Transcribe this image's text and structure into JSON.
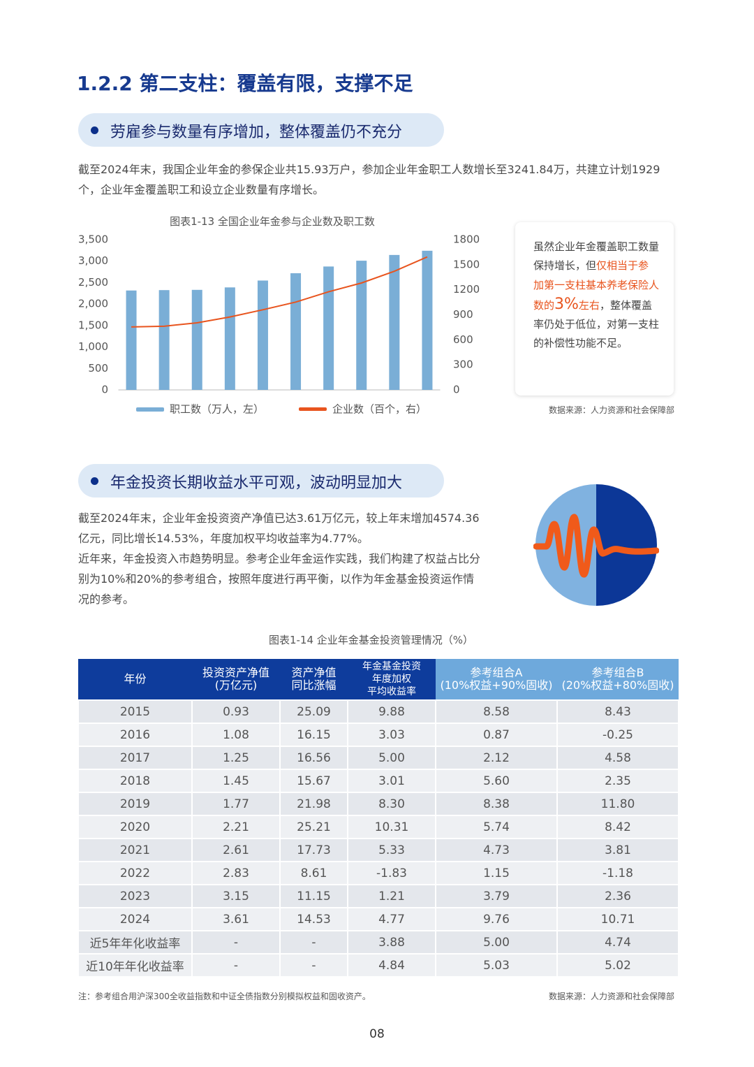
{
  "heading": "1.2.2 第二支柱：覆盖有限，支撑不足",
  "sections": [
    {
      "title": "劳雇参与数量有序增加，整体覆盖仍不充分",
      "paragraphs": [
        "截至2024年末，我国企业年金的参保企业共15.93万户，参加企业年金职工人数增长至3241.84万，共建立计划1929个，企业年金覆盖职工和设立企业数量有序增长。"
      ]
    },
    {
      "title": "年金投资长期收益水平可观，波动明显加大",
      "paragraphs": [
        "截至2024年末，企业年金投资资产净值已达3.61万亿元，较上年末增加4574.36亿元，同比增长14.53%，年度加权平均收益率为4.77%。",
        "近年来，年金投资入市趋势明显。参考企业年金运作实践，我们构建了权益占比分别为10%和20%的参考组合，按照年度进行再平衡，以作为年金基金投资运作情况的参考。"
      ]
    }
  ],
  "chart_data": {
    "type": "bar",
    "title": "图表1-13 全国企业年金参与企业数及职工数",
    "categories": [
      null,
      null,
      null,
      null,
      null,
      null,
      null,
      null,
      null,
      null
    ],
    "series": [
      {
        "name": "职工数（万人，左）",
        "color": "#7aaed6",
        "type": "bar",
        "values": [
          2316,
          2325,
          2331,
          2388,
          2548,
          2718,
          2875,
          3010,
          3144,
          3242
        ]
      },
      {
        "name": "企业数（百个，右）",
        "color": "#e8541e",
        "type": "line",
        "axis": "y2",
        "values": [
          755,
          763,
          804,
          874,
          960,
          1052,
          1176,
          1281,
          1422,
          1593
        ]
      }
    ],
    "ylim": [
      0,
      3500
    ],
    "yticks": [
      0,
      500,
      {
        "value": 1000,
        "label": "1,000"
      },
      {
        "value": 1500,
        "label": "1,500"
      },
      {
        "value": 2000,
        "label": "2,000"
      },
      {
        "value": 2500,
        "label": "2,500"
      },
      {
        "value": 3000,
        "label": "3,000"
      },
      {
        "value": 3500,
        "label": "3,500"
      }
    ],
    "y2lim": [
      0,
      1800
    ],
    "y2ticks": [
      0,
      300,
      600,
      900,
      1200,
      1500,
      1800
    ],
    "grid": false,
    "source": "数据来源：人力资源和社会保障部"
  },
  "callout": [
    "虽然企业年金覆盖职工数量保持增长，但",
    "仅相当于参加第一支柱基本养老保险人数的",
    "3%",
    "左右",
    "，整体覆盖率仍处于低位，对第一支柱的补偿性功能不足。"
  ],
  "table": {
    "title": "图表1-14 企业年金基金投资管理情况（%）",
    "headers": [
      [
        "年份"
      ],
      [
        "投资资产净值",
        "(万亿元)"
      ],
      [
        "资产净值",
        "同比涨幅"
      ],
      [
        "年金基金投资",
        "年度加权",
        "平均收益率"
      ],
      [
        "参考组合A",
        "(10%权益+90%固收)"
      ],
      [
        "参考组合B",
        "(20%权益+80%固收)"
      ]
    ],
    "rows": [
      [
        "2015",
        "0.93",
        "25.09",
        "9.88",
        "8.58",
        "8.43"
      ],
      [
        "2016",
        "1.08",
        "16.15",
        "3.03",
        "0.87",
        "-0.25"
      ],
      [
        "2017",
        "1.25",
        "16.56",
        "5.00",
        "2.12",
        "4.58"
      ],
      [
        "2018",
        "1.45",
        "15.67",
        "3.01",
        "5.60",
        "2.35"
      ],
      [
        "2019",
        "1.77",
        "21.98",
        "8.30",
        "8.38",
        "11.80"
      ],
      [
        "2020",
        "2.21",
        "25.21",
        "10.31",
        "5.74",
        "8.42"
      ],
      [
        "2021",
        "2.61",
        "17.73",
        "5.33",
        "4.73",
        "3.81"
      ],
      [
        "2022",
        "2.83",
        "8.61",
        "-1.83",
        "1.15",
        "-1.18"
      ],
      [
        "2023",
        "3.15",
        "11.15",
        "1.21",
        "3.79",
        "2.36"
      ],
      [
        "2024",
        "3.61",
        "14.53",
        "4.77",
        "9.76",
        "10.71"
      ],
      [
        "近5年年化收益率",
        "-",
        "-",
        "3.88",
        "5.00",
        "4.74"
      ],
      [
        "近10年年化收益率",
        "-",
        "-",
        "4.84",
        "5.03",
        "5.02"
      ]
    ],
    "note": "注：参考组合用沪深300全收益指数和中证全债指数分别模拟权益和固收资产。",
    "source": "数据来源：人力资源和社会保障部"
  },
  "page_number": "08"
}
